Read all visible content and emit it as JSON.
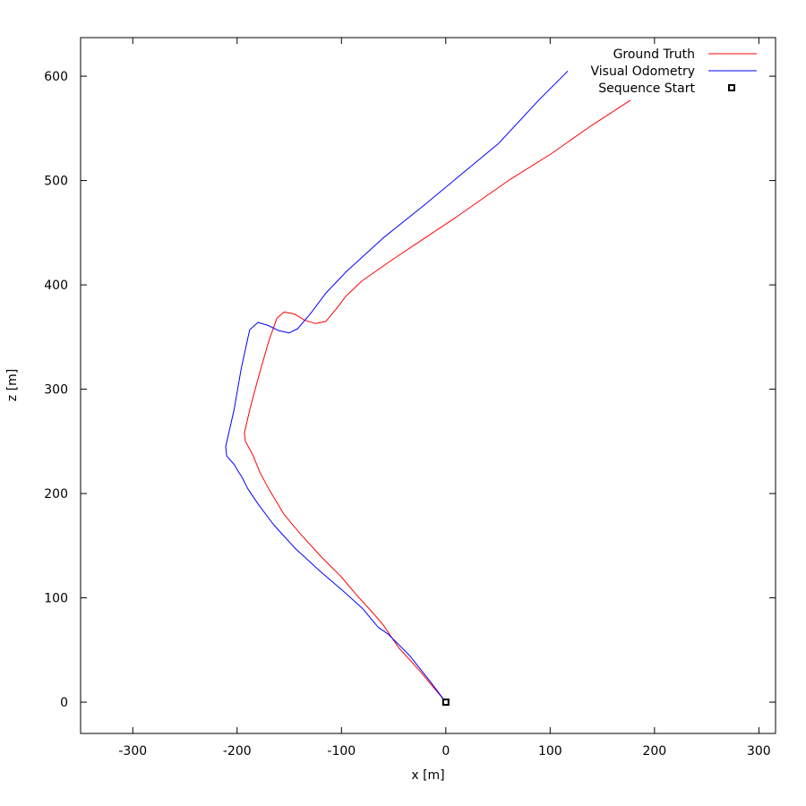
{
  "chart_data": {
    "type": "line",
    "title": "",
    "xlabel": "x [m]",
    "ylabel": "z [m]",
    "xlim": [
      -350,
      316
    ],
    "ylim": [
      -30,
      637
    ],
    "xticks": [
      -300,
      -200,
      -100,
      0,
      100,
      200,
      300
    ],
    "yticks": [
      0,
      100,
      200,
      300,
      400,
      500,
      600
    ],
    "grid": false,
    "legend_position": "top-right",
    "legend": [
      {
        "label": "Ground Truth",
        "kind": "line",
        "color": "#ff0000"
      },
      {
        "label": "Visual Odometry",
        "kind": "line",
        "color": "#0000ff"
      },
      {
        "label": "Sequence Start",
        "kind": "marker",
        "color": "#000000"
      }
    ],
    "series": [
      {
        "name": "Ground Truth",
        "color": "#ff0000",
        "points": [
          [
            0,
            0
          ],
          [
            -10,
            12
          ],
          [
            -25,
            30
          ],
          [
            -45,
            52
          ],
          [
            -60,
            74
          ],
          [
            -72,
            88
          ],
          [
            -85,
            102
          ],
          [
            -100,
            120
          ],
          [
            -120,
            140
          ],
          [
            -140,
            162
          ],
          [
            -155,
            180
          ],
          [
            -170,
            205
          ],
          [
            -178,
            220
          ],
          [
            -185,
            237
          ],
          [
            -192,
            250
          ],
          [
            -193,
            258
          ],
          [
            -188,
            280
          ],
          [
            -180,
            310
          ],
          [
            -170,
            345
          ],
          [
            -162,
            368
          ],
          [
            -155,
            374
          ],
          [
            -145,
            372
          ],
          [
            -135,
            366
          ],
          [
            -125,
            363
          ],
          [
            -115,
            365
          ],
          [
            -105,
            377
          ],
          [
            -95,
            390
          ],
          [
            -80,
            404
          ],
          [
            -50,
            425
          ],
          [
            -20,
            445
          ],
          [
            10,
            465
          ],
          [
            60,
            500
          ],
          [
            100,
            525
          ],
          [
            140,
            553
          ],
          [
            177,
            577
          ]
        ]
      },
      {
        "name": "Visual Odometry",
        "color": "#0000ff",
        "points": [
          [
            0,
            0
          ],
          [
            -15,
            20
          ],
          [
            -35,
            45
          ],
          [
            -55,
            65
          ],
          [
            -65,
            72
          ],
          [
            -80,
            90
          ],
          [
            -100,
            108
          ],
          [
            -120,
            125
          ],
          [
            -145,
            148
          ],
          [
            -165,
            170
          ],
          [
            -180,
            190
          ],
          [
            -190,
            205
          ],
          [
            -195,
            215
          ],
          [
            -203,
            228
          ],
          [
            -210,
            236
          ],
          [
            -211,
            245
          ],
          [
            -203,
            280
          ],
          [
            -196,
            320
          ],
          [
            -188,
            357
          ],
          [
            -180,
            364
          ],
          [
            -170,
            361
          ],
          [
            -160,
            356
          ],
          [
            -150,
            354
          ],
          [
            -142,
            358
          ],
          [
            -130,
            372
          ],
          [
            -115,
            392
          ],
          [
            -95,
            413
          ],
          [
            -60,
            445
          ],
          [
            -20,
            477
          ],
          [
            10,
            502
          ],
          [
            50,
            535
          ],
          [
            90,
            578
          ],
          [
            117,
            605
          ]
        ]
      }
    ],
    "start_marker": {
      "label": "Sequence Start",
      "x": 0,
      "z": 0
    }
  }
}
